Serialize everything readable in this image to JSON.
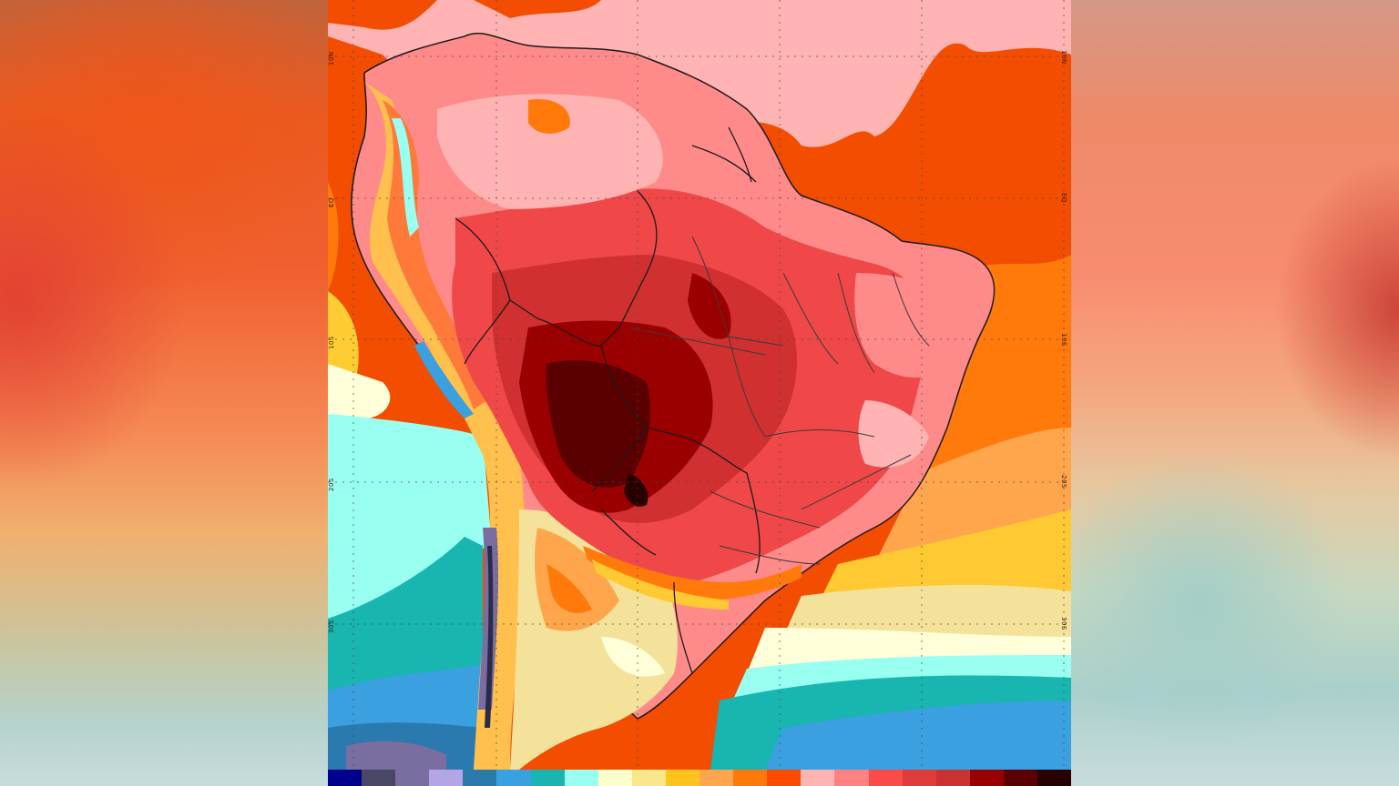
{
  "page": {
    "background": {
      "left_colors": [
        "#c0643c",
        "#ea5a20",
        "#e03c32",
        "#f58a55",
        "#f0b070",
        "#b6d2cc"
      ],
      "right_colors": [
        "#d49888",
        "#f88c70",
        "#c83c32",
        "#e6c8a0",
        "#aad0cc"
      ]
    }
  },
  "map": {
    "subject": "Temperature anomaly / heat map of South America",
    "region": "South America (Brazil, Andes, surrounding oceans)",
    "latitude_labels": {
      "right": [
        "10N",
        "EQ",
        "10S",
        "20S",
        "30S"
      ],
      "left": [
        "10N",
        "EQ",
        "10S",
        "20S",
        "30S"
      ]
    },
    "gridlines": "dotted",
    "colors": {
      "ocean_north": "#f24d00",
      "ocean_pink": "#ffb3b3",
      "ocean_orange": "#ff7a0a",
      "ocean_light_orange": "#ffa64d",
      "ocean_yellow": "#ffcc33",
      "ocean_cream": "#f5e29a",
      "ocean_pale": "#ffffd9",
      "ocean_cyan": "#99fff0",
      "ocean_teal": "#19b5b0",
      "ocean_blue": "#3aa0e0",
      "ocean_dark_blue": "#2a7ab0",
      "land_pink": "#ff8a8a",
      "land_red": "#f04848",
      "land_crimson": "#d03030",
      "land_dark_red": "#9a0000",
      "land_darkest": "#5a0000",
      "border": "#1a1a1a",
      "state_border": "#3a3a3a"
    }
  },
  "colorbar": {
    "swatches": [
      "#00008c",
      "#4a4666",
      "#7a6ea0",
      "#b4a6e6",
      "#2a7aaa",
      "#3aa0e0",
      "#19b5b0",
      "#99fff0",
      "#ffffcc",
      "#fae68c",
      "#ffc31e",
      "#ffa64d",
      "#ff7a0a",
      "#fa4b00",
      "#ffb4b4",
      "#ff8282",
      "#fa4b4b",
      "#e13c3c",
      "#c83232",
      "#960000",
      "#5a0000",
      "#280000"
    ]
  }
}
